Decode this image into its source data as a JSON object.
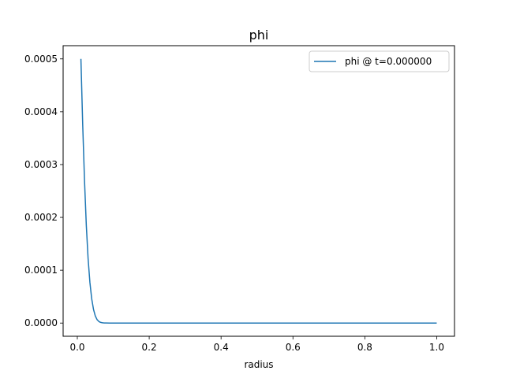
{
  "chart_data": {
    "type": "line",
    "title": "phi",
    "xlabel": "radius",
    "ylabel": "",
    "xlim": [
      -0.0395,
      1.0495
    ],
    "ylim": [
      -2.5e-05,
      0.000525
    ],
    "xticks": [
      0.0,
      0.2,
      0.4,
      0.6,
      0.8,
      1.0
    ],
    "xtick_labels": [
      "0.0",
      "0.2",
      "0.4",
      "0.6",
      "0.8",
      "1.0"
    ],
    "yticks": [
      0.0,
      0.0001,
      0.0002,
      0.0003,
      0.0004,
      0.0005
    ],
    "ytick_labels": [
      "0.0000",
      "0.0001",
      "0.0002",
      "0.0003",
      "0.0004",
      "0.0005"
    ],
    "grid": false,
    "legend_position": "top-right",
    "colors": {
      "series": "#1f77b4",
      "axes": "#000000",
      "background": "#ffffff"
    },
    "series": [
      {
        "name": "phi @ t=0.000000",
        "x": [
          0.01,
          0.015,
          0.02,
          0.025,
          0.03,
          0.035,
          0.04,
          0.045,
          0.05,
          0.055,
          0.06,
          0.065,
          0.07,
          0.075,
          0.08,
          0.09,
          0.1,
          0.15,
          0.2,
          0.3,
          0.4,
          0.5,
          0.6,
          0.7,
          0.8,
          0.9,
          1.0
        ],
        "y": [
          0.0005,
          0.000375,
          0.00027,
          0.000185,
          0.000122,
          7.7e-05,
          4.6e-05,
          2.6e-05,
          1.35e-05,
          6.5e-06,
          2.9e-06,
          1.2e-06,
          5e-07,
          2e-07,
          1e-07,
          0.0,
          0.0,
          0.0,
          0.0,
          0.0,
          0.0,
          0.0,
          0.0,
          0.0,
          0.0,
          0.0,
          0.0
        ]
      }
    ]
  }
}
